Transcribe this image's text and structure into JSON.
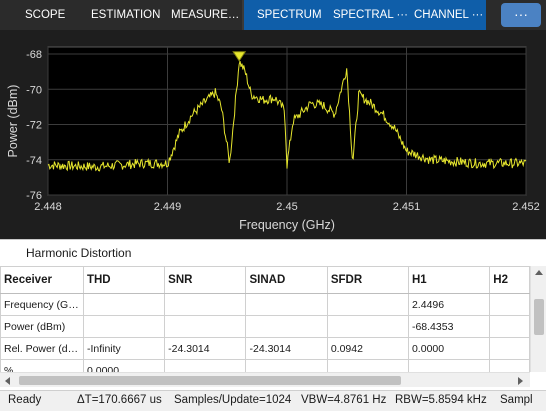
{
  "tabs": {
    "scope": "SCOPE",
    "estimation": "ESTIMATION",
    "measurements": "MEASURE…",
    "spectrum": "SPECTRUM",
    "spectral": "SPECTRAL ···",
    "channel": "CHANNEL ···",
    "more": "···"
  },
  "plot": {
    "ylabel": "Power (dBm)",
    "xlabel": "Frequency (GHz)",
    "trace_color": "#e6e62e",
    "marker_color": "#e6e62e"
  },
  "chart_data": {
    "type": "line",
    "title": "",
    "xlabel": "Frequency (GHz)",
    "ylabel": "Power (dBm)",
    "xlim": [
      2.448,
      2.452
    ],
    "ylim": [
      -76,
      -67.6
    ],
    "xticks": [
      "2.448",
      "2.449",
      "2.45",
      "2.451",
      "2.452"
    ],
    "yticks": [
      "-68",
      "-70",
      "-72",
      "-74",
      "-76"
    ],
    "grid": true,
    "series": [
      {
        "x": [
          2.448,
          2.4484,
          2.4488,
          2.449,
          2.4491,
          2.4492,
          2.4493,
          2.4494,
          2.44945,
          2.44952,
          2.4496,
          2.44965,
          2.4497,
          2.4498,
          2.4499,
          2.44998,
          2.45,
          2.45005,
          2.4502,
          2.4503,
          2.4504,
          2.4505,
          2.45055,
          2.4506,
          2.4507,
          2.4508,
          2.4509,
          2.451,
          2.4512,
          2.4516,
          2.452
        ],
        "y": [
          -74.3,
          -74.4,
          -74.2,
          -74.2,
          -72.5,
          -71.5,
          -70.8,
          -70.2,
          -71.0,
          -74.2,
          -68.4,
          -69.0,
          -70.3,
          -70.6,
          -70.5,
          -71.2,
          -74.3,
          -71.8,
          -70.8,
          -70.9,
          -71.4,
          -68.8,
          -74.2,
          -70.3,
          -70.8,
          -71.4,
          -72.2,
          -73.5,
          -74.0,
          -74.2,
          -74.2
        ]
      }
    ],
    "marker": {
      "x": 2.4496,
      "y": -68.4353
    }
  },
  "panel": {
    "title": "Harmonic Distortion",
    "columns": [
      "Receiver",
      "THD",
      "SNR",
      "SINAD",
      "SFDR",
      "H1",
      "H2"
    ],
    "rows": [
      [
        "Frequency (G…",
        "",
        "",
        "",
        "",
        "2.4496",
        ""
      ],
      [
        "Power (dBm)",
        "",
        "",
        "",
        "",
        "-68.4353",
        ""
      ],
      [
        "Rel. Power (d…",
        "-Infinity",
        "-24.3014",
        "-24.3014",
        "0.0942",
        "0.0000",
        ""
      ],
      [
        "%",
        "0.0000",
        "",
        "",
        "",
        "",
        ""
      ]
    ]
  },
  "status": {
    "ready": "Ready",
    "delta_t": "ΔT=170.6667 us",
    "samples": "Samples/Update=1024",
    "vbw": "VBW=4.8761 Hz",
    "rbw": "RBW=5.8594 kHz",
    "tail": "Sampl"
  }
}
